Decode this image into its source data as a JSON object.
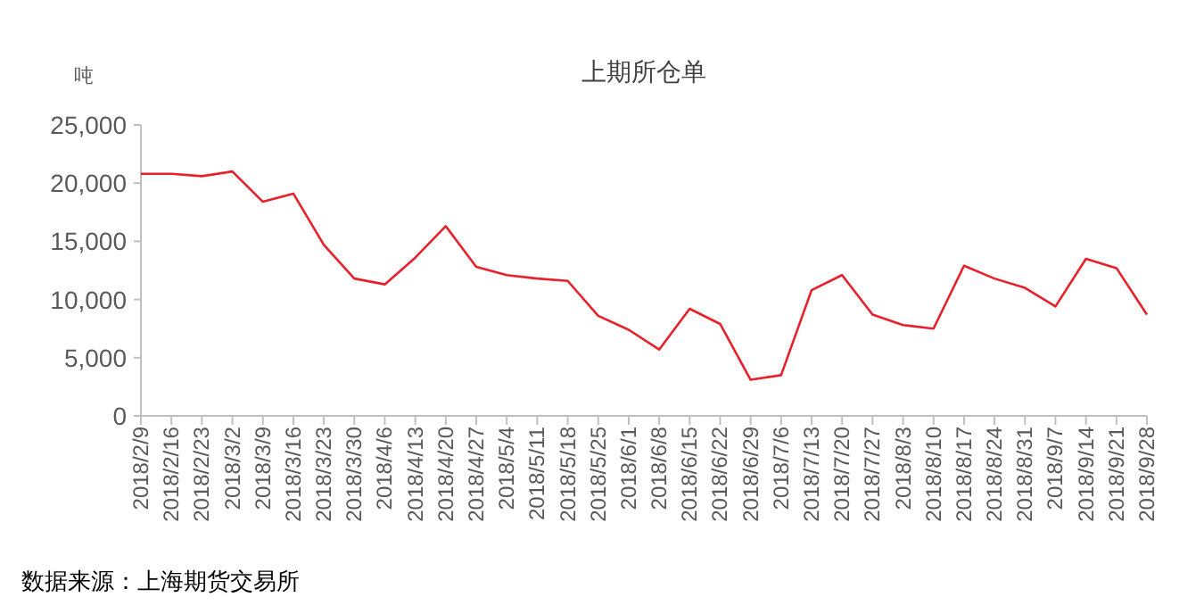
{
  "chart_data": {
    "type": "line",
    "title": "上期所仓单",
    "ylabel": "吨",
    "annotations": [
      "数据来源：上海期货交易所"
    ],
    "categories": [
      "2018/2/9",
      "2018/2/16",
      "2018/2/23",
      "2018/3/2",
      "2018/3/9",
      "2018/3/16",
      "2018/3/23",
      "2018/3/30",
      "2018/4/6",
      "2018/4/13",
      "2018/4/20",
      "2018/4/27",
      "2018/5/4",
      "2018/5/11",
      "2018/5/18",
      "2018/5/25",
      "2018/6/1",
      "2018/6/8",
      "2018/6/15",
      "2018/6/22",
      "2018/6/29",
      "2018/7/6",
      "2018/7/13",
      "2018/7/20",
      "2018/7/27",
      "2018/8/3",
      "2018/8/10",
      "2018/8/17",
      "2018/8/24",
      "2018/8/31",
      "2018/9/7",
      "2018/9/14",
      "2018/9/21",
      "2018/9/28"
    ],
    "series": [
      {
        "color": "#e8202a",
        "values": [
          20800,
          20800,
          20600,
          21000,
          18400,
          19100,
          14700,
          11800,
          11300,
          13600,
          16300,
          12800,
          12100,
          11800,
          11600,
          8600,
          7400,
          5700,
          9200,
          7900,
          3100,
          3500,
          10800,
          12100,
          8700,
          7800,
          7500,
          12900,
          11800,
          11000,
          9400,
          13500,
          12700,
          8700
        ]
      }
    ],
    "ylim": [
      0,
      25000
    ],
    "yticks": [
      {
        "value": 0,
        "label": "0"
      },
      {
        "value": 5000,
        "label": "5,000"
      },
      {
        "value": 10000,
        "label": "10,000"
      },
      {
        "value": 15000,
        "label": "15,000"
      },
      {
        "value": 20000,
        "label": "20,000"
      },
      {
        "value": 25000,
        "label": "25,000"
      }
    ],
    "grid": false,
    "marker": "none",
    "line_style": "solid"
  }
}
